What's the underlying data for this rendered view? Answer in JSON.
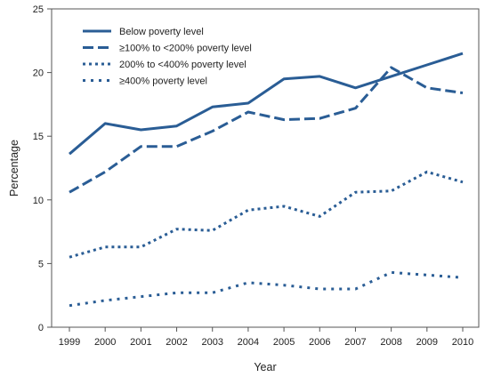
{
  "chart_data": {
    "type": "line",
    "title": "",
    "xlabel": "Year",
    "ylabel": "Percentage",
    "ylim": [
      0,
      25
    ],
    "yticks": [
      0,
      5,
      10,
      15,
      20,
      25
    ],
    "categories": [
      "1999",
      "2000",
      "2001",
      "2002",
      "2003",
      "2004",
      "2005",
      "2006",
      "2007",
      "2008",
      "2009",
      "2010"
    ],
    "legend_position": "top-left",
    "grid": false,
    "series": [
      {
        "name": "Below poverty level",
        "style": "solid",
        "color": "#2a5d95",
        "values": [
          13.6,
          16.0,
          15.5,
          15.8,
          17.3,
          17.6,
          19.5,
          19.7,
          18.8,
          19.7,
          20.6,
          21.5
        ]
      },
      {
        "name": "≥100% to <200% poverty level",
        "style": "long-dash",
        "color": "#2a5d95",
        "values": [
          10.6,
          12.2,
          14.2,
          14.2,
          15.4,
          16.9,
          16.3,
          16.4,
          17.2,
          20.4,
          18.8,
          18.4
        ]
      },
      {
        "name": "200% to <400% poverty level",
        "style": "dotted",
        "color": "#2a5d95",
        "values": [
          5.5,
          6.3,
          6.3,
          7.7,
          7.6,
          9.2,
          9.5,
          8.7,
          10.6,
          10.7,
          12.2,
          11.4
        ]
      },
      {
        "name": "≥400% poverty level",
        "style": "dotted",
        "color": "#2a5d95",
        "values": [
          1.7,
          2.1,
          2.4,
          2.7,
          2.7,
          3.5,
          3.3,
          3.0,
          3.0,
          4.3,
          4.1,
          3.9
        ]
      }
    ]
  }
}
